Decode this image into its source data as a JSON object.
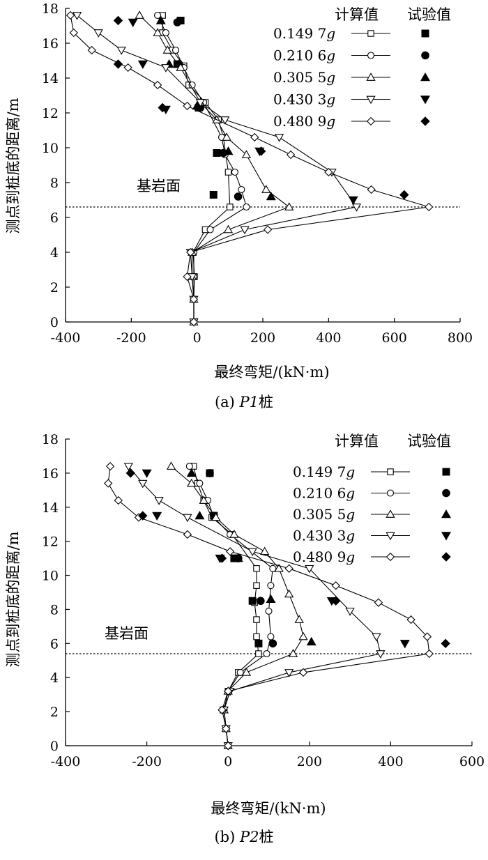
{
  "chart_data": [
    {
      "type": "line",
      "caption": "(a) P1桩",
      "caption_prefix": "(a) ",
      "caption_pile": "P1",
      "caption_suffix": "桩",
      "xlabel": "最终弯矩/(kN·m)",
      "ylabel": "测点到桩底的距离/m",
      "xlim": [
        -400,
        800
      ],
      "ylim": [
        0,
        18
      ],
      "xticks": [
        -400,
        -200,
        0,
        200,
        400,
        600,
        800
      ],
      "yticks": [
        0,
        2,
        4,
        6,
        8,
        10,
        12,
        14,
        16,
        18
      ],
      "bedrock_label": "基岩面",
      "bedrock_depth": 6.6,
      "legend_heads": {
        "calc": "计算值",
        "test": "试验值"
      },
      "series": [
        {
          "name": "0.149 7g",
          "num": "0.149 7",
          "unit": "g",
          "calc_marker": "square-open",
          "test_marker": "square-filled",
          "calc": [
            [
              -10,
              0
            ],
            [
              -10,
              1.3
            ],
            [
              -8,
              2.6
            ],
            [
              -12,
              4
            ],
            [
              25,
              5.3
            ],
            [
              100,
              6.6
            ],
            [
              95,
              8.6
            ],
            [
              80,
              10.6
            ],
            [
              65,
              11.6
            ],
            [
              25,
              12.6
            ],
            [
              -25,
              13.6
            ],
            [
              -40,
              14.7
            ],
            [
              -75,
              15.6
            ],
            [
              -105,
              16.6
            ],
            [
              -105,
              17.6
            ]
          ],
          "test": [
            [
              50,
              7.3
            ],
            [
              60,
              9.7
            ],
            [
              5,
              12.3
            ],
            [
              -60,
              14.8
            ],
            [
              -50,
              17.3
            ]
          ]
        },
        {
          "name": "0.210 6g",
          "num": "0.210 6",
          "unit": "g",
          "calc_marker": "circle-open",
          "test_marker": "circle-filled",
          "calc": [
            [
              -10,
              0
            ],
            [
              -10,
              1.3
            ],
            [
              -10,
              2.6
            ],
            [
              -10,
              4
            ],
            [
              40,
              5.3
            ],
            [
              150,
              6.6
            ],
            [
              135,
              7.6
            ],
            [
              115,
              8.6
            ],
            [
              85,
              9.6
            ],
            [
              75,
              10.6
            ],
            [
              20,
              12.6
            ],
            [
              -15,
              13.6
            ],
            [
              -40,
              14.6
            ],
            [
              -65,
              15.6
            ],
            [
              -95,
              16.6
            ],
            [
              -120,
              17.6
            ]
          ],
          "test": [
            [
              125,
              7.2
            ],
            [
              80,
              9.7
            ],
            [
              10,
              12.3
            ],
            [
              -55,
              14.8
            ],
            [
              -60,
              17.2
            ]
          ]
        },
        {
          "name": "0.305 5g",
          "num": "0.305 5",
          "unit": "g",
          "calc_marker": "triangle-open",
          "test_marker": "triangle-filled",
          "calc": [
            [
              -10,
              0
            ],
            [
              -10,
              1.3
            ],
            [
              -15,
              2.6
            ],
            [
              -15,
              4
            ],
            [
              95,
              5.3
            ],
            [
              280,
              6.6
            ],
            [
              210,
              7.6
            ],
            [
              150,
              9.6
            ],
            [
              90,
              10.6
            ],
            [
              60,
              11.6
            ],
            [
              10,
              12.6
            ],
            [
              -50,
              14.6
            ],
            [
              -90,
              15.6
            ],
            [
              -120,
              16.6
            ],
            [
              -175,
              17.6
            ]
          ],
          "test": [
            [
              225,
              7.2
            ],
            [
              95,
              9.8
            ],
            [
              0,
              12.4
            ],
            [
              -85,
              14.8
            ],
            [
              -110,
              17.3
            ]
          ]
        },
        {
          "name": "0.430 3g",
          "num": "0.430 3",
          "unit": "g",
          "calc_marker": "triangle-down-open",
          "test_marker": "triangle-down-filled",
          "calc": [
            [
              -10,
              0
            ],
            [
              -10,
              1.3
            ],
            [
              -15,
              2.6
            ],
            [
              -20,
              4
            ],
            [
              145,
              5.3
            ],
            [
              485,
              6.6
            ],
            [
              410,
              8.6
            ],
            [
              250,
              10.6
            ],
            [
              85,
              11.6
            ],
            [
              10,
              12.6
            ],
            [
              -95,
              14.6
            ],
            [
              -230,
              15.6
            ],
            [
              -300,
              16.6
            ],
            [
              -365,
              17.6
            ]
          ],
          "test": [
            [
              475,
              7.0
            ],
            [
              190,
              9.8
            ],
            [
              -95,
              12.2
            ],
            [
              -165,
              14.8
            ],
            [
              -195,
              17.2
            ]
          ]
        },
        {
          "name": "0.480 9g",
          "num": "0.480 9",
          "unit": "g",
          "calc_marker": "diamond-open",
          "test_marker": "diamond-filled",
          "calc": [
            [
              -10,
              0
            ],
            [
              -10,
              1.3
            ],
            [
              -30,
              2.6
            ],
            [
              -20,
              4
            ],
            [
              215,
              5.3
            ],
            [
              705,
              6.6
            ],
            [
              530,
              7.6
            ],
            [
              400,
              8.6
            ],
            [
              285,
              9.6
            ],
            [
              175,
              10.6
            ],
            [
              -30,
              12.4
            ],
            [
              -120,
              13.6
            ],
            [
              -210,
              14.6
            ],
            [
              -320,
              15.6
            ],
            [
              -375,
              16.6
            ],
            [
              -385,
              17.6
            ]
          ],
          "test": [
            [
              630,
              7.3
            ],
            [
              195,
              9.8
            ],
            [
              -105,
              12.3
            ],
            [
              -240,
              14.8
            ],
            [
              -240,
              17.3
            ]
          ]
        }
      ]
    },
    {
      "type": "line",
      "caption": "(b) P2桩",
      "caption_prefix": "(b) ",
      "caption_pile": "P2",
      "caption_suffix": "桩",
      "xlabel": "最终弯矩/(kN·m)",
      "ylabel": "测点到桩底的距离/m",
      "xlim": [
        -400,
        600
      ],
      "ylim": [
        0,
        18
      ],
      "xticks": [
        -400,
        -200,
        0,
        200,
        400,
        600
      ],
      "yticks": [
        0,
        2,
        4,
        6,
        8,
        10,
        12,
        14,
        16,
        18
      ],
      "bedrock_label": "基岩面",
      "bedrock_depth": 5.4,
      "legend_heads": {
        "calc": "计算值",
        "test": "试验值"
      },
      "series": [
        {
          "name": "0.149 7g",
          "num": "0.149 7",
          "unit": "g",
          "calc_marker": "square-open",
          "test_marker": "square-filled",
          "calc": [
            [
              0,
              0
            ],
            [
              -5,
              1
            ],
            [
              -10,
              2.1
            ],
            [
              0,
              3.2
            ],
            [
              25,
              4.3
            ],
            [
              75,
              5.4
            ],
            [
              70,
              6.4
            ],
            [
              70,
              7.4
            ],
            [
              65,
              8.4
            ],
            [
              70,
              9.4
            ],
            [
              70,
              10.4
            ],
            [
              10,
              12.4
            ],
            [
              -40,
              13.4
            ],
            [
              -60,
              14.4
            ],
            [
              -75,
              15.4
            ],
            [
              -85,
              16.4
            ]
          ],
          "test": [
            [
              75,
              6.0
            ],
            [
              60,
              8.5
            ],
            [
              15,
              11.0
            ],
            [
              -35,
              13.5
            ],
            [
              -45,
              16.0
            ]
          ]
        },
        {
          "name": "0.210 6g",
          "num": "0.210 6",
          "unit": "g",
          "calc_marker": "circle-open",
          "test_marker": "circle-filled",
          "calc": [
            [
              0,
              0
            ],
            [
              -5,
              1
            ],
            [
              -10,
              2.1
            ],
            [
              0,
              3.2
            ],
            [
              30,
              4.3
            ],
            [
              95,
              5.4
            ],
            [
              105,
              6.4
            ],
            [
              100,
              7.9
            ],
            [
              105,
              9.4
            ],
            [
              110,
              10.4
            ],
            [
              5,
              12.4
            ],
            [
              -35,
              13.4
            ],
            [
              -50,
              14.4
            ],
            [
              -70,
              15.4
            ],
            [
              -95,
              16.4
            ]
          ],
          "test": [
            [
              110,
              6.0
            ],
            [
              80,
              8.5
            ],
            [
              25,
              11.0
            ],
            [
              -35,
              13.5
            ],
            [
              -45,
              16.0
            ]
          ]
        },
        {
          "name": "0.305 5g",
          "num": "0.305 5",
          "unit": "g",
          "calc_marker": "triangle-open",
          "test_marker": "triangle-filled",
          "calc": [
            [
              0,
              0
            ],
            [
              -5,
              1
            ],
            [
              -10,
              2.1
            ],
            [
              0,
              3.2
            ],
            [
              45,
              4.3
            ],
            [
              160,
              5.4
            ],
            [
              185,
              6.4
            ],
            [
              175,
              7.4
            ],
            [
              150,
              8.9
            ],
            [
              125,
              10.4
            ],
            [
              90,
              11.4
            ],
            [
              15,
              12.4
            ],
            [
              -30,
              13.4
            ],
            [
              -60,
              14.4
            ],
            [
              -90,
              15.4
            ],
            [
              -140,
              16.4
            ]
          ],
          "test": [
            [
              205,
              6.1
            ],
            [
              105,
              8.6
            ],
            [
              25,
              11.0
            ],
            [
              -70,
              13.5
            ],
            [
              -90,
              16.0
            ]
          ]
        },
        {
          "name": "0.430 3g",
          "num": "0.430 3",
          "unit": "g",
          "calc_marker": "triangle-down-open",
          "test_marker": "triangle-down-filled",
          "calc": [
            [
              0,
              0
            ],
            [
              -5,
              1
            ],
            [
              -10,
              2.1
            ],
            [
              5,
              3.2
            ],
            [
              150,
              4.3
            ],
            [
              375,
              5.4
            ],
            [
              365,
              6.4
            ],
            [
              300,
              7.9
            ],
            [
              200,
              10.4
            ],
            [
              60,
              11.4
            ],
            [
              -100,
              13.4
            ],
            [
              -170,
              14.4
            ],
            [
              -210,
              15.4
            ],
            [
              -245,
              16.4
            ]
          ],
          "test": [
            [
              435,
              6.0
            ],
            [
              255,
              8.5
            ],
            [
              -20,
              11.0
            ],
            [
              -175,
              13.5
            ],
            [
              -200,
              16.0
            ]
          ]
        },
        {
          "name": "0.480 9g",
          "num": "0.480 9",
          "unit": "g",
          "calc_marker": "diamond-open",
          "test_marker": "diamond-filled",
          "calc": [
            [
              0,
              0
            ],
            [
              -5,
              1
            ],
            [
              -15,
              2.1
            ],
            [
              0,
              3.2
            ],
            [
              185,
              4.3
            ],
            [
              495,
              5.4
            ],
            [
              490,
              6.4
            ],
            [
              450,
              7.4
            ],
            [
              370,
              8.4
            ],
            [
              265,
              9.4
            ],
            [
              150,
              10.4
            ],
            [
              5,
              11.4
            ],
            [
              -100,
              12.4
            ],
            [
              -220,
              13.4
            ],
            [
              -270,
              14.4
            ],
            [
              -295,
              15.4
            ],
            [
              -290,
              16.4
            ]
          ],
          "test": [
            [
              535,
              6.0
            ],
            [
              265,
              8.5
            ],
            [
              -15,
              11.0
            ],
            [
              -210,
              13.5
            ],
            [
              -240,
              16.0
            ]
          ]
        }
      ]
    }
  ]
}
